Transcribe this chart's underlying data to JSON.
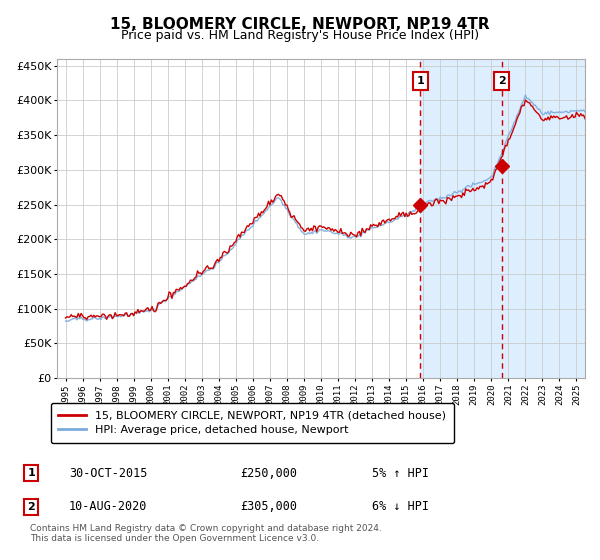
{
  "title": "15, BLOOMERY CIRCLE, NEWPORT, NP19 4TR",
  "subtitle": "Price paid vs. HM Land Registry's House Price Index (HPI)",
  "legend_label_red": "15, BLOOMERY CIRCLE, NEWPORT, NP19 4TR (detached house)",
  "legend_label_blue": "HPI: Average price, detached house, Newport",
  "footnote": "Contains HM Land Registry data © Crown copyright and database right 2024.\nThis data is licensed under the Open Government Licence v3.0.",
  "annotation1_label": "1",
  "annotation1_date": "30-OCT-2015",
  "annotation1_price": "£250,000",
  "annotation1_hpi": "5% ↑ HPI",
  "annotation2_label": "2",
  "annotation2_date": "10-AUG-2020",
  "annotation2_price": "£305,000",
  "annotation2_hpi": "6% ↓ HPI",
  "sale1_year": 2015.83,
  "sale1_value": 250000,
  "sale2_year": 2020.6,
  "sale2_value": 305000,
  "ylim": [
    0,
    460000
  ],
  "xlim_start": 1994.5,
  "xlim_end": 2025.5,
  "bg_shade_start": 2015.83,
  "bg_shade_end": 2025.5,
  "red_color": "#cc0000",
  "blue_color": "#7aabdc",
  "shade_color": "#ddeeff",
  "grid_color": "#cccccc",
  "dashed_color": "#cc0000"
}
